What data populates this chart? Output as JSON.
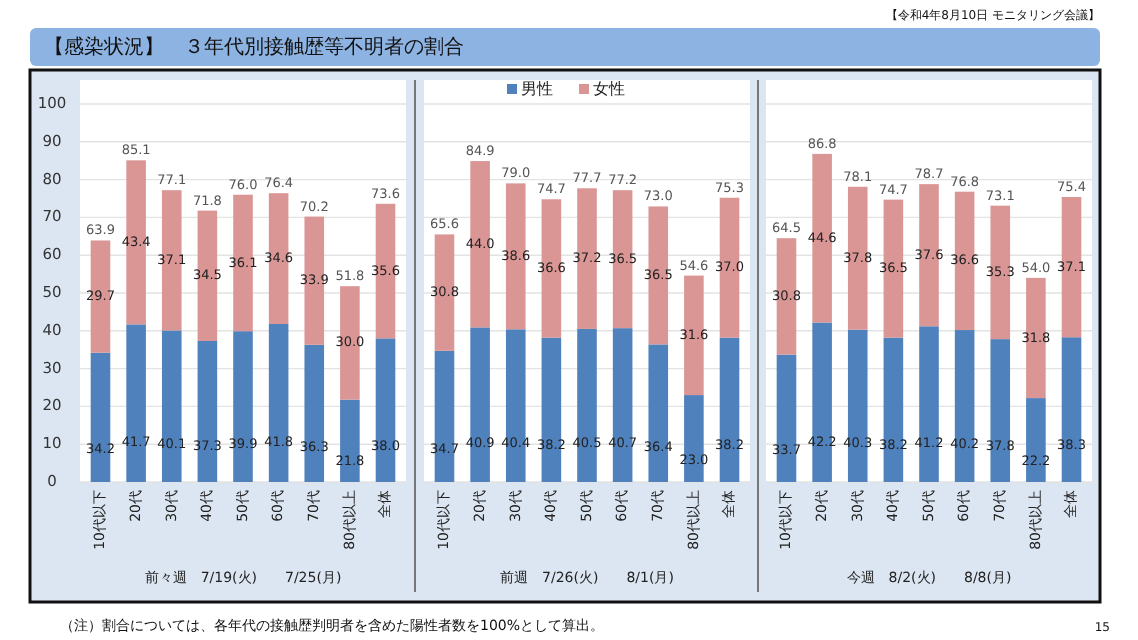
{
  "chart_data": [
    {
      "type": "bar",
      "stacked": true,
      "title": "【感染状況】　３年代別接触歴等不明者の割合",
      "annotations": [
        "【令和4年8月10日 モニタリング会議】",
        "（注）割合については、各年代の接触歴判明者を含めた陽性者数を100%として算出。",
        "15"
      ],
      "xlabel": "前々週　7/19(火)　　7/25(月)",
      "categories": [
        "10代以下",
        "20代",
        "30代",
        "40代",
        "50代",
        "60代",
        "70代",
        "80代以上",
        "全体"
      ],
      "ylim": [
        0,
        100
      ],
      "yticks": [
        0,
        10,
        20,
        30,
        40,
        50,
        60,
        70,
        80,
        90,
        100
      ],
      "grid": "y",
      "series": [
        {
          "color": "#4f81bd",
          "values": [
            34.2,
            41.7,
            40.1,
            37.3,
            39.9,
            41.8,
            36.3,
            21.8,
            38.0
          ],
          "value_labels": [
            "34.2",
            "41.7",
            "40.1",
            "37.3",
            "39.9",
            "41.8",
            "36.3",
            "21.8",
            "38.0"
          ]
        },
        {
          "color": "#da9694",
          "values": [
            29.7,
            43.4,
            37.1,
            34.5,
            36.1,
            34.6,
            33.9,
            30.0,
            35.6
          ],
          "value_labels": [
            "29.7",
            "43.4",
            "37.1",
            "34.5",
            "36.1",
            "34.6",
            "33.9",
            "30.0",
            "35.6"
          ]
        }
      ],
      "totals": [
        "63.9",
        "85.1",
        "77.1",
        "71.8",
        "76.0",
        "76.4",
        "70.2",
        "51.8",
        "73.6"
      ]
    },
    {
      "type": "bar",
      "stacked": true,
      "xlabel": "前週　7/26(火)　　8/1(月)",
      "categories": [
        "10代以下",
        "20代",
        "30代",
        "40代",
        "50代",
        "60代",
        "70代",
        "80代以上",
        "全体"
      ],
      "ylim": [
        0,
        100
      ],
      "yticks": [
        0,
        10,
        20,
        30,
        40,
        50,
        60,
        70,
        80,
        90,
        100
      ],
      "tick_labels": "x",
      "grid": "y",
      "legend": "top",
      "series": [
        {
          "name": "男性",
          "color": "#4f81bd",
          "values": [
            34.7,
            40.9,
            40.4,
            38.2,
            40.5,
            40.7,
            36.4,
            23.0,
            38.2
          ],
          "value_labels": [
            "34.7",
            "40.9",
            "40.4",
            "38.2",
            "40.5",
            "40.7",
            "36.4",
            "23.0",
            "38.2"
          ]
        },
        {
          "name": "女性",
          "color": "#da9694",
          "values": [
            30.8,
            44.0,
            38.6,
            36.6,
            37.2,
            36.5,
            36.5,
            31.6,
            37.0
          ],
          "value_labels": [
            "30.8",
            "44.0",
            "38.6",
            "36.6",
            "37.2",
            "36.5",
            "36.5",
            "31.6",
            "37.0"
          ]
        }
      ],
      "totals": [
        "65.6",
        "84.9",
        "79.0",
        "74.7",
        "77.7",
        "77.2",
        "73.0",
        "54.6",
        "75.3"
      ]
    },
    {
      "type": "bar",
      "stacked": true,
      "xlabel": "今週　8/2(火)　　8/8(月)",
      "categories": [
        "10代以下",
        "20代",
        "30代",
        "40代",
        "50代",
        "60代",
        "70代",
        "80代以上",
        "全体"
      ],
      "ylim": [
        0,
        100
      ],
      "yticks": [
        0,
        10,
        20,
        30,
        40,
        50,
        60,
        70,
        80,
        90,
        100
      ],
      "tick_labels": "x",
      "grid": "y",
      "series": [
        {
          "color": "#4f81bd",
          "values": [
            33.7,
            42.2,
            40.3,
            38.2,
            41.2,
            40.2,
            37.8,
            22.2,
            38.3
          ],
          "value_labels": [
            "33.7",
            "42.2",
            "40.3",
            "38.2",
            "41.2",
            "40.2",
            "37.8",
            "22.2",
            "38.3"
          ]
        },
        {
          "color": "#da9694",
          "values": [
            30.8,
            44.6,
            37.8,
            36.5,
            37.6,
            36.6,
            35.3,
            31.8,
            37.1
          ],
          "value_labels": [
            "30.8",
            "44.6",
            "37.8",
            "36.5",
            "37.6",
            "36.6",
            "35.3",
            "31.8",
            "37.1"
          ]
        }
      ],
      "totals": [
        "64.5",
        "86.8",
        "78.1",
        "74.7",
        "78.7",
        "76.8",
        "73.1",
        "54.0",
        "75.4"
      ]
    }
  ]
}
